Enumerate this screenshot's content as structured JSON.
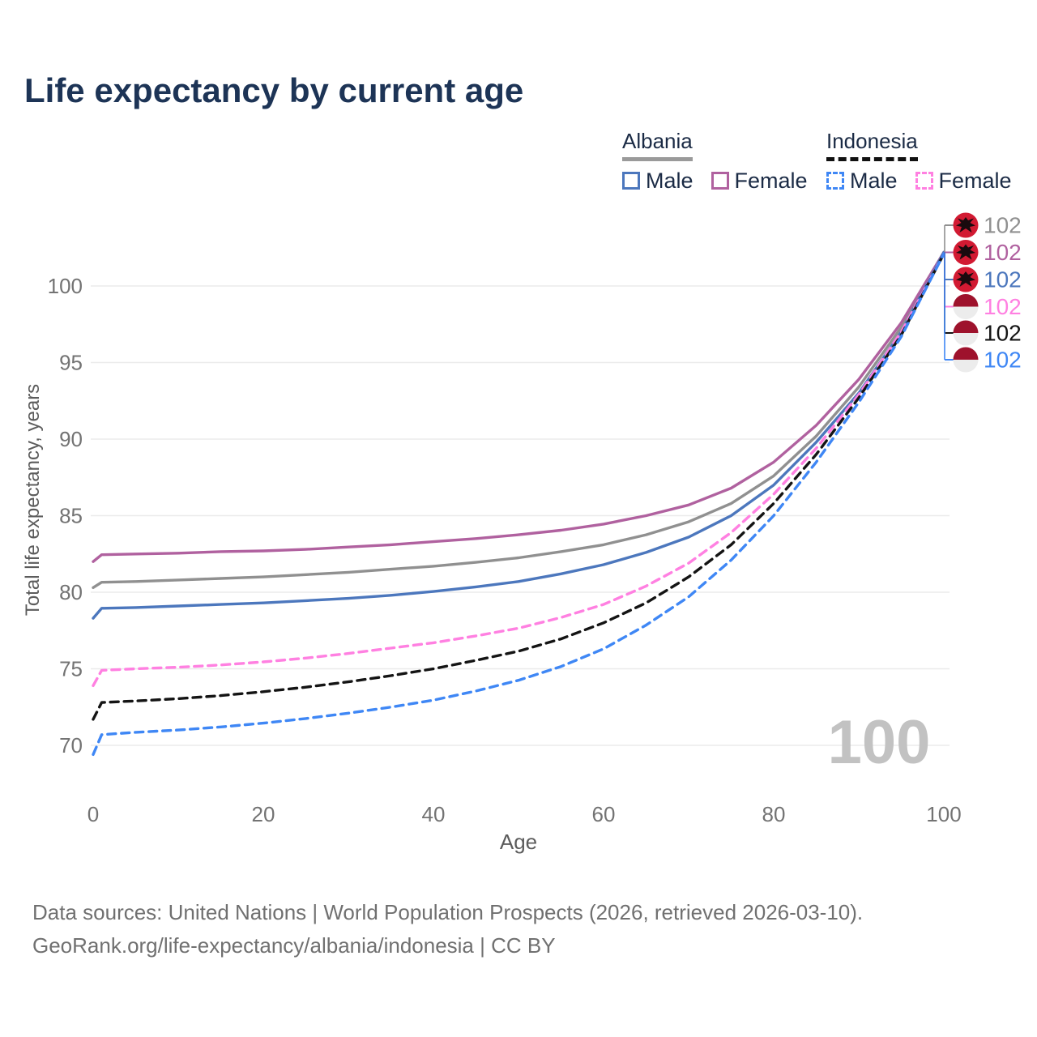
{
  "title": "Life expectancy by current age",
  "legend": {
    "groups": [
      {
        "label": "Albania",
        "line_style": "solid",
        "underline_color": "#9a9a9a",
        "items": [
          {
            "label": "Male",
            "color": "#4c77bd",
            "dash": false
          },
          {
            "label": "Female",
            "color": "#b0619f",
            "dash": false
          }
        ]
      },
      {
        "label": "Indonesia",
        "line_style": "dashed",
        "underline_color": "#111111",
        "items": [
          {
            "label": "Male",
            "color": "#3f87f5",
            "dash": true
          },
          {
            "label": "Female",
            "color": "#ff80e1",
            "dash": true
          }
        ]
      }
    ]
  },
  "watermark": "100",
  "footer": {
    "line1": "Data sources: United Nations | World Population Prospects (2026, retrieved 2026-03-10).",
    "line2": "GeoRank.org/life-expectancy/albania/indonesia | CC BY"
  },
  "chart_data": {
    "type": "line",
    "title": "Life expectancy by current age",
    "xlabel": "Age",
    "ylabel": "Total life expectancy, years",
    "xlim": [
      0,
      100
    ],
    "ylim": [
      69,
      103
    ],
    "x_ticks": [
      0,
      20,
      40,
      60,
      80,
      100
    ],
    "y_ticks": [
      70,
      75,
      80,
      85,
      90,
      95,
      100
    ],
    "grid": "horizontal",
    "legend_position": "top-right",
    "x": [
      0,
      1,
      5,
      10,
      15,
      20,
      25,
      30,
      35,
      40,
      45,
      50,
      55,
      60,
      65,
      70,
      75,
      80,
      85,
      90,
      95,
      100
    ],
    "series": [
      {
        "name": "Albania Total",
        "country": "Albania",
        "sex": "Total",
        "color": "#909090",
        "dash": false,
        "flag": "albania",
        "end_label": "102",
        "values": [
          80.3,
          80.65,
          80.7,
          80.8,
          80.9,
          81.0,
          81.15,
          81.3,
          81.5,
          81.7,
          81.95,
          82.25,
          82.65,
          83.1,
          83.75,
          84.6,
          85.8,
          87.6,
          90.2,
          93.4,
          97.3,
          102.2
        ]
      },
      {
        "name": "Albania Female",
        "country": "Albania",
        "sex": "Female",
        "color": "#b0619f",
        "dash": false,
        "flag": "albania",
        "end_label": "102",
        "values": [
          82.0,
          82.45,
          82.5,
          82.55,
          82.65,
          82.7,
          82.8,
          82.95,
          83.1,
          83.3,
          83.5,
          83.75,
          84.05,
          84.45,
          85.0,
          85.7,
          86.8,
          88.5,
          90.9,
          93.9,
          97.6,
          102.2
        ]
      },
      {
        "name": "Albania Male",
        "country": "Albania",
        "sex": "Male",
        "color": "#4c77bd",
        "dash": false,
        "flag": "albania",
        "end_label": "102",
        "values": [
          78.3,
          78.95,
          79.0,
          79.1,
          79.2,
          79.3,
          79.45,
          79.6,
          79.8,
          80.05,
          80.35,
          80.7,
          81.2,
          81.8,
          82.6,
          83.6,
          85.0,
          87.0,
          89.8,
          93.0,
          97.0,
          102.2
        ]
      },
      {
        "name": "Indonesia Female",
        "country": "Indonesia",
        "sex": "Female",
        "color": "#ff80e1",
        "dash": true,
        "flag": "indonesia",
        "end_label": "102",
        "values": [
          73.9,
          74.9,
          75.0,
          75.1,
          75.25,
          75.45,
          75.7,
          76.0,
          76.35,
          76.7,
          77.15,
          77.65,
          78.35,
          79.2,
          80.4,
          81.9,
          83.9,
          86.4,
          89.4,
          92.9,
          97.0,
          102.1
        ]
      },
      {
        "name": "Indonesia Total",
        "country": "Indonesia",
        "sex": "Total",
        "color": "#141414",
        "dash": true,
        "flag": "indonesia",
        "end_label": "102",
        "values": [
          71.7,
          72.8,
          72.9,
          73.05,
          73.25,
          73.5,
          73.8,
          74.15,
          74.55,
          75.0,
          75.55,
          76.15,
          76.95,
          78.0,
          79.3,
          81.0,
          83.1,
          85.8,
          89.0,
          92.7,
          96.8,
          102.1
        ]
      },
      {
        "name": "Indonesia Male",
        "country": "Indonesia",
        "sex": "Male",
        "color": "#3f87f5",
        "dash": true,
        "flag": "indonesia",
        "end_label": "102",
        "values": [
          69.4,
          70.7,
          70.85,
          71.0,
          71.2,
          71.45,
          71.75,
          72.1,
          72.5,
          72.95,
          73.55,
          74.25,
          75.15,
          76.3,
          77.85,
          79.7,
          82.1,
          85.0,
          88.5,
          92.4,
          96.7,
          102.1
        ]
      }
    ]
  }
}
